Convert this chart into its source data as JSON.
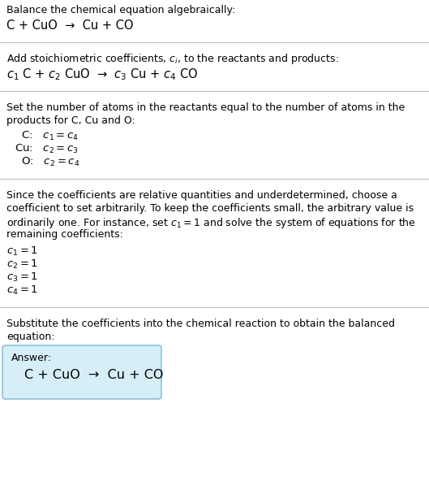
{
  "bg_color": "#ffffff",
  "section1_title": "Balance the chemical equation algebraically:",
  "section1_eq": "C + CuO  →  Cu + CO",
  "section2_title": "Add stoichiometric coefficients, $c_i$, to the reactants and products:",
  "section2_eq": "$c_1$ C + $c_2$ CuO  →  $c_3$ Cu + $c_4$ CO",
  "section3_title_line1": "Set the number of atoms in the reactants equal to the number of atoms in the",
  "section3_title_line2": "products for C, Cu and O:",
  "section3_lines": [
    "  C:   $c_1 = c_4$",
    "Cu:   $c_2 = c_3$",
    "  O:   $c_2 = c_4$"
  ],
  "section4_title_lines": [
    "Since the coefficients are relative quantities and underdetermined, choose a",
    "coefficient to set arbitrarily. To keep the coefficients small, the arbitrary value is",
    "ordinarily one. For instance, set $c_1 = 1$ and solve the system of equations for the",
    "remaining coefficients:"
  ],
  "section4_lines": [
    "$c_1 = 1$",
    "$c_2 = 1$",
    "$c_3 = 1$",
    "$c_4 = 1$"
  ],
  "section5_title_line1": "Substitute the coefficients into the chemical reaction to obtain the balanced",
  "section5_title_line2": "equation:",
  "answer_label": "Answer:",
  "answer_eq": "C + CuO  →  Cu + CO",
  "answer_box_color": "#d6eef8",
  "answer_box_edge_color": "#7ab8d8",
  "line_color": "#bbbbbb",
  "text_color": "#000000",
  "prose_fontsize": 9.0,
  "eq_fontsize": 10.5,
  "coeff_fontsize": 9.5
}
